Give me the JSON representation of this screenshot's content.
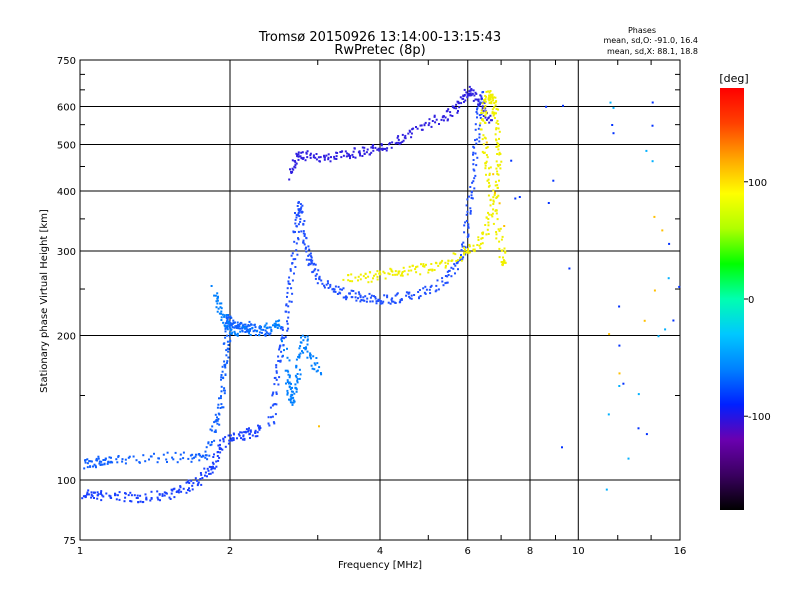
{
  "chart_data": {
    "type": "scatter",
    "title": "Tromsø 20150926 13:14:00-13:15:43",
    "subtitle": "RwPretec (8p)",
    "xlabel": "Frequency [MHz]",
    "ylabel": "Stationary phase Virtual Height [km]",
    "x_scale": "log",
    "y_scale": "log",
    "xlim": [
      1,
      16
    ],
    "ylim": [
      75,
      750
    ],
    "x_ticks": [
      1,
      2,
      4,
      6,
      8,
      10,
      16
    ],
    "y_ticks": [
      75,
      100,
      200,
      300,
      400,
      500,
      600,
      750
    ],
    "grid": true,
    "phase_stats": {
      "heading": "Phases",
      "line_o": "mean, sd,O: -91.0, 16.4",
      "line_x": "mean, sd,X:  88.1, 18.8"
    },
    "colorbar": {
      "label": "[deg]",
      "min": -180,
      "max": 180,
      "ticks": [
        100,
        0,
        -100
      ],
      "colors": [
        "#000000",
        "#3a0060",
        "#6a00b0",
        "#0020ff",
        "#0080ff",
        "#00c8ff",
        "#00ffb0",
        "#00ff00",
        "#b0ff00",
        "#ffff00",
        "#ffa500",
        "#ff4000",
        "#ff0000"
      ]
    },
    "series": [
      {
        "phase": -95,
        "color": "#1a40ff",
        "points": [
          [
            1.0,
            93
          ],
          [
            1.05,
            94
          ],
          [
            1.1,
            93
          ],
          [
            1.2,
            93
          ],
          [
            1.3,
            92
          ],
          [
            1.4,
            93
          ],
          [
            1.5,
            94
          ],
          [
            1.6,
            96
          ],
          [
            1.7,
            99
          ],
          [
            1.8,
            104
          ],
          [
            1.85,
            110
          ],
          [
            1.9,
            118
          ],
          [
            2.0,
            123
          ],
          [
            2.1,
            124
          ],
          [
            2.2,
            126
          ],
          [
            2.3,
            128
          ]
        ]
      },
      {
        "phase": -100,
        "color": "#1060ff",
        "points": [
          [
            1.0,
            108
          ],
          [
            1.05,
            109
          ],
          [
            1.1,
            110
          ],
          [
            1.15,
            110
          ],
          [
            1.3,
            111
          ],
          [
            1.5,
            112
          ],
          [
            1.7,
            112
          ],
          [
            1.8,
            114
          ],
          [
            1.85,
            130
          ],
          [
            1.9,
            140
          ],
          [
            1.93,
            160
          ],
          [
            1.95,
            180
          ],
          [
            1.97,
            200
          ],
          [
            1.98,
            220
          ],
          [
            2.0,
            210
          ],
          [
            2.05,
            212
          ],
          [
            2.1,
            208
          ],
          [
            2.15,
            210
          ],
          [
            2.2,
            207
          ],
          [
            2.3,
            205
          ],
          [
            2.4,
            204
          ]
        ]
      },
      {
        "phase": -90,
        "color": "#0080ff",
        "points": [
          [
            1.85,
            250
          ],
          [
            1.9,
            230
          ],
          [
            1.95,
            215
          ],
          [
            2.0,
            205
          ],
          [
            2.2,
            205
          ],
          [
            2.45,
            210
          ],
          [
            2.5,
            215
          ],
          [
            2.6,
            170
          ],
          [
            2.62,
            155
          ],
          [
            2.65,
            145
          ],
          [
            2.7,
            160
          ],
          [
            2.75,
            180
          ],
          [
            2.8,
            200
          ],
          [
            2.9,
            180
          ],
          [
            3.0,
            170
          ]
        ]
      },
      {
        "phase": -85,
        "color": "#2050ff",
        "points": [
          [
            2.4,
            130
          ],
          [
            2.45,
            150
          ],
          [
            2.5,
            175
          ],
          [
            2.55,
            200
          ],
          [
            2.6,
            230
          ],
          [
            2.65,
            270
          ],
          [
            2.7,
            320
          ],
          [
            2.72,
            360
          ],
          [
            2.75,
            380
          ],
          [
            2.8,
            330
          ],
          [
            2.85,
            300
          ],
          [
            2.9,
            280
          ],
          [
            3.0,
            265
          ],
          [
            3.2,
            252
          ],
          [
            3.4,
            245
          ],
          [
            3.6,
            242
          ],
          [
            3.8,
            240
          ],
          [
            4.0,
            238
          ],
          [
            4.3,
            240
          ],
          [
            4.6,
            243
          ],
          [
            5.0,
            250
          ],
          [
            5.4,
            262
          ],
          [
            5.7,
            280
          ],
          [
            5.9,
            310
          ],
          [
            6.0,
            360
          ],
          [
            6.1,
            420
          ],
          [
            6.2,
            500
          ],
          [
            6.3,
            580
          ],
          [
            6.35,
            640
          ]
        ]
      },
      {
        "phase": -92,
        "color": "#3020e0",
        "points": [
          [
            2.65,
            430
          ],
          [
            2.7,
            470
          ],
          [
            2.8,
            480
          ],
          [
            3.0,
            470
          ],
          [
            3.2,
            475
          ],
          [
            3.4,
            480
          ],
          [
            3.6,
            485
          ],
          [
            3.8,
            490
          ],
          [
            4.0,
            495
          ],
          [
            4.3,
            510
          ],
          [
            4.6,
            530
          ],
          [
            5.0,
            555
          ],
          [
            5.4,
            575
          ],
          [
            5.7,
            600
          ],
          [
            5.9,
            630
          ],
          [
            6.0,
            650
          ],
          [
            6.2,
            630
          ],
          [
            6.4,
            600
          ],
          [
            6.6,
            560
          ]
        ]
      },
      {
        "phase": 85,
        "color": "#f0f000",
        "points": [
          [
            3.4,
            262
          ],
          [
            3.7,
            265
          ],
          [
            4.0,
            268
          ],
          [
            4.3,
            272
          ],
          [
            4.6,
            275
          ],
          [
            5.0,
            278
          ],
          [
            5.4,
            285
          ],
          [
            5.8,
            295
          ],
          [
            6.1,
            305
          ],
          [
            6.4,
            320
          ],
          [
            6.6,
            350
          ],
          [
            6.8,
            400
          ],
          [
            6.9,
            460
          ],
          [
            6.85,
            520
          ],
          [
            6.8,
            580
          ],
          [
            6.7,
            620
          ],
          [
            6.6,
            640
          ],
          [
            6.5,
            620
          ],
          [
            6.4,
            560
          ],
          [
            6.5,
            480
          ],
          [
            6.6,
            420
          ],
          [
            6.8,
            350
          ],
          [
            7.0,
            300
          ],
          [
            7.1,
            280
          ]
        ]
      },
      {
        "phase": 110,
        "color": "#ffc000",
        "points": [
          [
            6.6,
            500
          ],
          [
            6.7,
            440
          ],
          [
            6.8,
            400
          ],
          [
            6.9,
            370
          ],
          [
            7.0,
            340
          ],
          [
            3.0,
            128
          ],
          [
            11.5,
            200
          ],
          [
            12,
            170
          ],
          [
            14,
            350
          ],
          [
            14.5,
            330
          ],
          [
            14.2,
            250
          ],
          [
            13.5,
            220
          ]
        ]
      },
      {
        "phase": -110,
        "color": "#0030ff",
        "points": [
          [
            7.3,
            470
          ],
          [
            7.5,
            380
          ],
          [
            7.6,
            390
          ],
          [
            8.5,
            600
          ],
          [
            9.2,
            600
          ],
          [
            9.5,
            280
          ],
          [
            9.3,
            120
          ],
          [
            8.6,
            380
          ],
          [
            8.8,
            430
          ],
          [
            11.8,
            540
          ],
          [
            11.6,
            530
          ],
          [
            12,
            230
          ],
          [
            12.2,
            190
          ],
          [
            12.4,
            160
          ],
          [
            13,
            130
          ],
          [
            13.5,
            125
          ],
          [
            14,
            620
          ],
          [
            14.2,
            560
          ],
          [
            15,
            310
          ],
          [
            15.5,
            220
          ],
          [
            15.8,
            250
          ],
          [
            15.9,
            580
          ]
        ]
      },
      {
        "phase": -60,
        "color": "#00b0ff",
        "points": [
          [
            11.7,
            600
          ],
          [
            11.5,
            610
          ],
          [
            11.6,
            140
          ],
          [
            11.9,
            160
          ],
          [
            12.5,
            110
          ],
          [
            13.8,
            480
          ],
          [
            14.0,
            470
          ],
          [
            14.5,
            200
          ],
          [
            14.8,
            205
          ],
          [
            15.2,
            260
          ],
          [
            11.5,
            95
          ],
          [
            13.2,
            150
          ]
        ]
      }
    ]
  }
}
